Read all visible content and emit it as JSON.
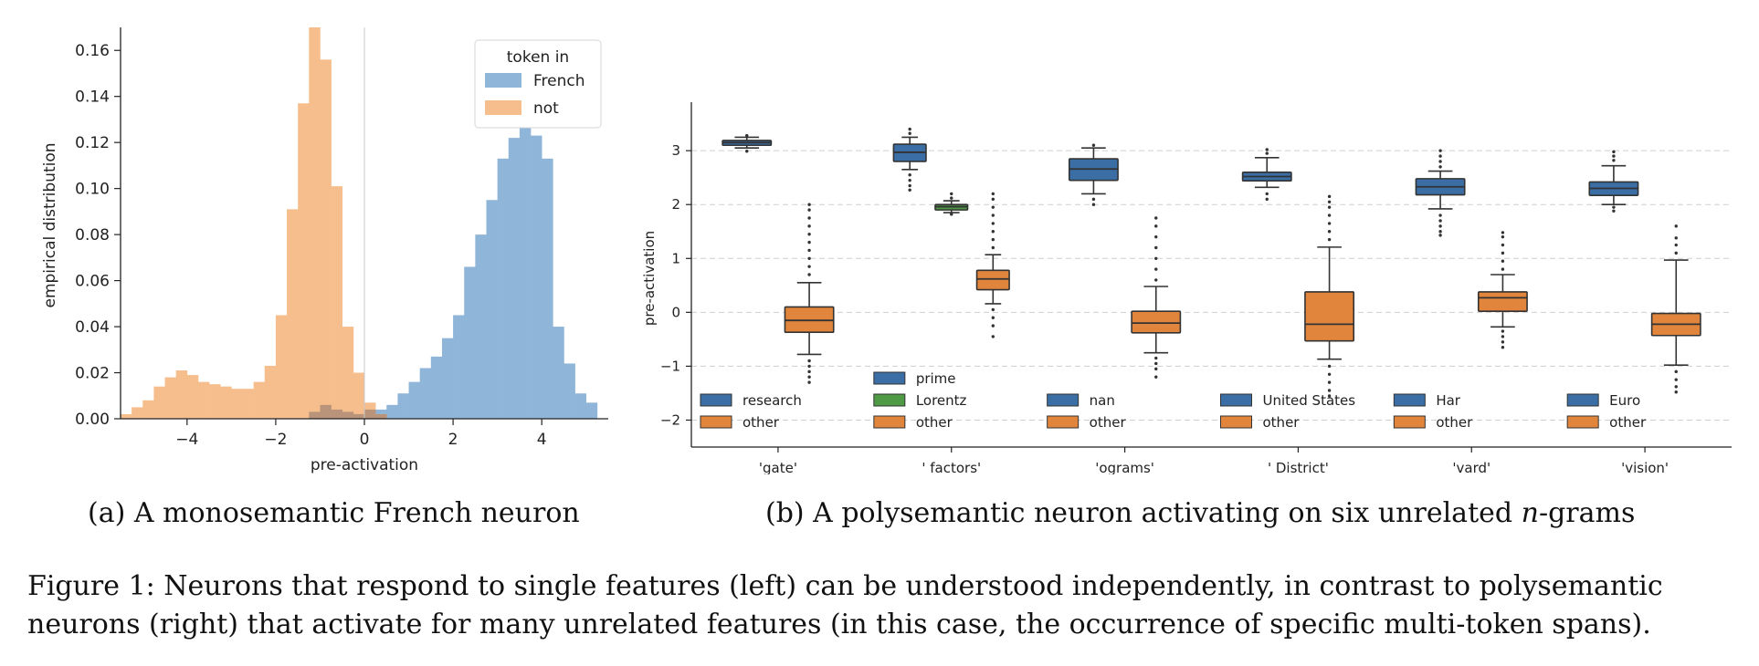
{
  "chart_data": [
    {
      "type": "histogram",
      "xlabel": "pre-activation",
      "ylabel": "empirical distribution",
      "xlim": [
        -5.5,
        5.5
      ],
      "ylim": [
        0,
        0.17
      ],
      "xticks": [
        -4,
        -2,
        0,
        2,
        4
      ],
      "yticks": [
        0.0,
        0.02,
        0.04,
        0.06,
        0.08,
        0.1,
        0.12,
        0.14,
        0.16
      ],
      "bin_width": 0.25,
      "vline_x": 0,
      "legend": {
        "title": "token in",
        "position": "top-right"
      },
      "series": [
        {
          "name": "French",
          "color": "#8fb5d8",
          "bin_starts": [
            0.25,
            0.5,
            0.75,
            1.0,
            1.25,
            1.5,
            1.75,
            2.0,
            2.25,
            2.5,
            2.75,
            3.0,
            3.25,
            3.5,
            3.75,
            4.0,
            4.25,
            4.5,
            4.75,
            5.0
          ],
          "values": [
            0.004,
            0.006,
            0.011,
            0.016,
            0.022,
            0.027,
            0.035,
            0.045,
            0.066,
            0.08,
            0.095,
            0.113,
            0.122,
            0.13,
            0.123,
            0.113,
            0.04,
            0.024,
            0.011,
            0.007
          ]
        },
        {
          "name": "not",
          "color": "#f5be8c",
          "bin_starts": [
            -5.5,
            -5.25,
            -5.0,
            -4.75,
            -4.5,
            -4.25,
            -4.0,
            -3.75,
            -3.5,
            -3.25,
            -3.0,
            -2.75,
            -2.5,
            -2.25,
            -2.0,
            -1.75,
            -1.5,
            -1.25,
            -1.0,
            -0.75,
            -0.5,
            -0.25,
            0.0,
            0.25
          ],
          "values": [
            0.002,
            0.005,
            0.008,
            0.014,
            0.018,
            0.021,
            0.019,
            0.016,
            0.015,
            0.014,
            0.013,
            0.013,
            0.016,
            0.023,
            0.045,
            0.091,
            0.137,
            0.17,
            0.156,
            0.101,
            0.04,
            0.02,
            0.007,
            0.002
          ]
        }
      ],
      "overlap": {
        "bin_starts": [
          -1.25,
          -1.0,
          -0.75,
          -0.5,
          -0.25,
          0.0,
          0.25
        ],
        "values": [
          0.003,
          0.006,
          0.004,
          0.003,
          0.002,
          0.004,
          0.002
        ],
        "color": "#b9937a"
      }
    },
    {
      "type": "box",
      "ylabel": "pre-activation",
      "ylim": [
        -2.5,
        3.9
      ],
      "yticks": [
        -2,
        -1,
        0,
        1,
        2,
        3
      ],
      "categories": [
        "'gate'",
        "' factors'",
        "'ograms'",
        "' District'",
        "'vard'",
        "'vision'"
      ],
      "groups": [
        {
          "legend": [
            "research",
            "other"
          ],
          "boxes": [
            {
              "label": "research",
              "color": "#3a6ea5",
              "q1": 3.1,
              "median": 3.15,
              "q3": 3.19,
              "lo": 3.05,
              "hi": 3.25,
              "outliers_lo": [
                2.99
              ],
              "outliers_hi": [
                3.28
              ]
            },
            {
              "label": "other",
              "color": "#e0853b",
              "q1": -0.37,
              "median": -0.15,
              "q3": 0.1,
              "lo": -0.78,
              "hi": 0.55,
              "outliers_lo": [
                -0.9,
                -1.0,
                -1.1,
                -1.2,
                -1.3
              ],
              "outliers_hi": [
                0.7,
                0.85,
                1.0,
                1.15,
                1.3,
                1.45,
                1.6,
                1.75,
                1.9,
                2.0
              ]
            }
          ]
        },
        {
          "legend": [
            "prime",
            "Lorentz",
            "other"
          ],
          "boxes": [
            {
              "label": "prime",
              "color": "#3a6ea5",
              "q1": 2.8,
              "median": 2.97,
              "q3": 3.12,
              "lo": 2.65,
              "hi": 3.25,
              "outliers_lo": [
                2.55,
                2.45,
                2.35,
                2.27
              ],
              "outliers_hi": [
                3.32,
                3.4
              ]
            },
            {
              "label": "Lorentz",
              "color": "#4f9a45",
              "q1": 1.9,
              "median": 1.96,
              "q3": 2.0,
              "lo": 1.85,
              "hi": 2.07,
              "outliers_lo": [
                1.82
              ],
              "outliers_hi": [
                2.12,
                2.2
              ]
            },
            {
              "label": "other",
              "color": "#e0853b",
              "q1": 0.42,
              "median": 0.62,
              "q3": 0.78,
              "lo": 0.16,
              "hi": 1.07,
              "outliers_lo": [
                0.05,
                -0.1,
                -0.25,
                -0.45
              ],
              "outliers_hi": [
                1.2,
                1.35,
                1.5,
                1.65,
                1.8,
                1.95,
                2.1,
                2.2
              ]
            }
          ]
        },
        {
          "legend": [
            "nan",
            "other"
          ],
          "boxes": [
            {
              "label": "nan",
              "color": "#3a6ea5",
              "q1": 2.45,
              "median": 2.66,
              "q3": 2.85,
              "lo": 2.2,
              "hi": 3.05,
              "outliers_lo": [
                2.1,
                2.0
              ],
              "outliers_hi": [
                3.1
              ]
            },
            {
              "label": "other",
              "color": "#e0853b",
              "q1": -0.38,
              "median": -0.2,
              "q3": 0.02,
              "lo": -0.75,
              "hi": 0.48,
              "outliers_lo": [
                -0.85,
                -0.95,
                -1.05,
                -1.2
              ],
              "outliers_hi": [
                0.6,
                0.8,
                1.0,
                1.2,
                1.4,
                1.6,
                1.75
              ]
            }
          ]
        },
        {
          "legend": [
            "United States",
            "other"
          ],
          "boxes": [
            {
              "label": "United States",
              "color": "#3a6ea5",
              "q1": 2.44,
              "median": 2.52,
              "q3": 2.6,
              "lo": 2.32,
              "hi": 2.87,
              "outliers_lo": [
                2.2,
                2.1
              ],
              "outliers_hi": [
                2.95,
                3.02
              ]
            },
            {
              "label": "other",
              "color": "#e0853b",
              "q1": -0.53,
              "median": -0.22,
              "q3": 0.38,
              "lo": -0.87,
              "hi": 1.21,
              "outliers_lo": [
                -1.0,
                -1.15,
                -1.3,
                -1.45,
                -1.55
              ],
              "outliers_hi": [
                1.35,
                1.5,
                1.65,
                1.8,
                1.95,
                2.05,
                2.15
              ]
            }
          ]
        },
        {
          "legend": [
            "Har",
            "other"
          ],
          "boxes": [
            {
              "label": "Har",
              "color": "#3a6ea5",
              "q1": 2.18,
              "median": 2.33,
              "q3": 2.48,
              "lo": 1.92,
              "hi": 2.62,
              "outliers_lo": [
                1.8,
                1.7,
                1.6,
                1.5,
                1.43
              ],
              "outliers_hi": [
                2.7,
                2.8,
                2.9,
                3.0
              ]
            },
            {
              "label": "other",
              "color": "#e0853b",
              "q1": 0.02,
              "median": 0.27,
              "q3": 0.38,
              "lo": -0.27,
              "hi": 0.7,
              "outliers_lo": [
                -0.35,
                -0.45,
                -0.55,
                -0.65
              ],
              "outliers_hi": [
                0.8,
                0.95,
                1.1,
                1.25,
                1.4,
                1.48
              ]
            }
          ]
        },
        {
          "legend": [
            "Euro",
            "other"
          ],
          "boxes": [
            {
              "label": "Euro",
              "color": "#3a6ea5",
              "q1": 2.17,
              "median": 2.3,
              "q3": 2.42,
              "lo": 2.0,
              "hi": 2.72,
              "outliers_lo": [
                1.95,
                1.88
              ],
              "outliers_hi": [
                2.82,
                2.9,
                2.98
              ]
            },
            {
              "label": "other",
              "color": "#e0853b",
              "q1": -0.43,
              "median": -0.22,
              "q3": -0.02,
              "lo": -0.98,
              "hi": 0.97,
              "outliers_lo": [
                -1.1,
                -1.25,
                -1.38,
                -1.48
              ],
              "outliers_hi": [
                1.1,
                1.25,
                1.38,
                1.6
              ]
            }
          ]
        }
      ]
    }
  ],
  "captions": {
    "a": "(a)  A monosemantic French neuron",
    "b_prefix": "(b)  A polysemantic neuron activating on six unrelated ",
    "b_n": "n",
    "b_suffix": "-grams",
    "figure": "Figure 1: Neurons that respond to single features (left) can be understood independently, in contrast to polysemantic neurons (right) that activate for many unrelated features (in this case, the occurrence of specific multi-token spans)."
  }
}
